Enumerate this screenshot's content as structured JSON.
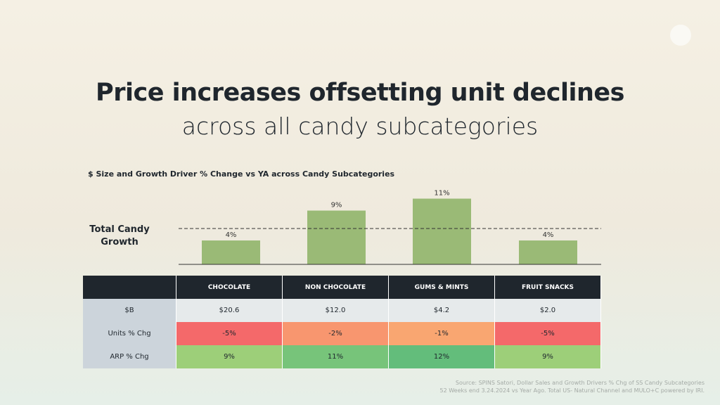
{
  "title": "Price increases offsetting unit declines",
  "subtitle": "across all candy subcategories",
  "chart_data": {
    "type": "bar",
    "title": "$ Size and Growth Driver % Change vs YA across Candy Subcategories",
    "categories": [
      "CHOCOLATE",
      "NON CHOCOLATE",
      "GUMS & MINTS",
      "FRUIT SNACKS"
    ],
    "values": [
      4,
      9,
      11,
      4
    ],
    "data_labels": [
      "4%",
      "9%",
      "11%",
      "4%"
    ],
    "reference_line": {
      "label": "Total Candy Growth",
      "value": 6
    },
    "ylim": [
      0,
      13
    ],
    "bar_color": "#9aba76"
  },
  "table": {
    "columns": [
      "",
      "CHOCOLATE",
      "NON CHOCOLATE",
      "GUMS & MINTS",
      "FRUIT SNACKS"
    ],
    "rows": [
      {
        "label": "$B",
        "cells": [
          "$20.6",
          "$12.0",
          "$4.2",
          "$2.0"
        ],
        "colors": [
          "#e6eaeb",
          "#e6eaeb",
          "#e6eaeb",
          "#e6eaeb"
        ]
      },
      {
        "label": "Units % Chg",
        "cells": [
          "-5%",
          "-2%",
          "-1%",
          "-5%"
        ],
        "colors": [
          "#f4696a",
          "#f8966f",
          "#f9a671",
          "#f4696a"
        ]
      },
      {
        "label": "ARP % Chg",
        "cells": [
          "9%",
          "11%",
          "12%",
          "9%"
        ],
        "colors": [
          "#9dcf79",
          "#77c47a",
          "#63bd7b",
          "#9dcf79"
        ]
      }
    ]
  },
  "source": [
    "Source: SPINS Satori, Dollar Sales and Growth Drivers % Chg of SS Candy Subcategories",
    "52 Weeks end 3.24.2024 vs Year Ago. Total US- Natural Channel and MULO+C powered by IRI."
  ]
}
